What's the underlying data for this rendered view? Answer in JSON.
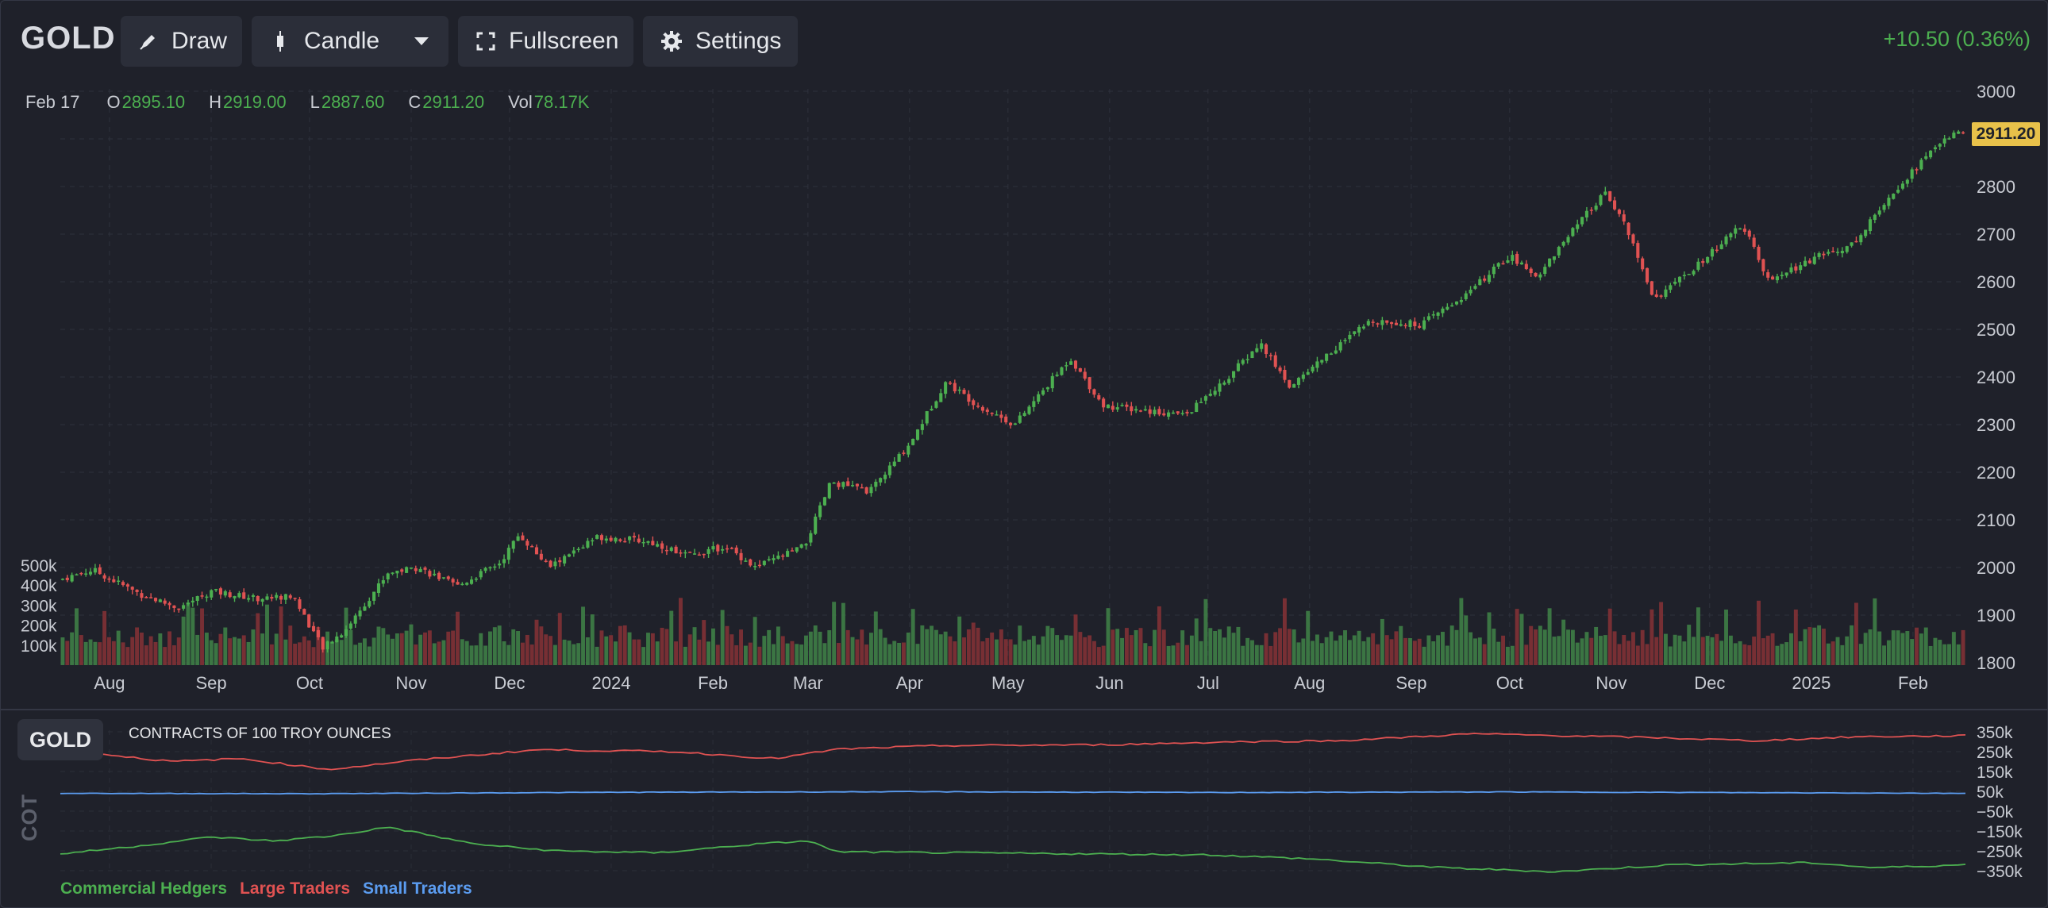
{
  "toolbar": {
    "symbol": "GOLD",
    "draw_label": "Draw",
    "chart_type_label": "Candle",
    "fullscreen_label": "Fullscreen",
    "settings_label": "Settings",
    "change_text": "+10.50 (0.36%)"
  },
  "ohlc": {
    "date": "Feb 17",
    "o_label": "O",
    "o_value": "2895.10",
    "h_label": "H",
    "h_value": "2919.00",
    "l_label": "L",
    "l_value": "2887.60",
    "c_label": "C",
    "c_value": "2911.20",
    "vol_label": "Vol",
    "vol_value": "78.17K"
  },
  "colors": {
    "up": "#4caf50",
    "down": "#e05252",
    "small": "#5b9cf0",
    "price_tag": "#e8c14a"
  },
  "chart_data": [
    {
      "type": "candlestick",
      "x_ticks": [
        "Aug",
        "Sep",
        "Oct",
        "Nov",
        "Dec",
        "2024",
        "Feb",
        "Mar",
        "Apr",
        "May",
        "Jun",
        "Jul",
        "Aug",
        "Sep",
        "Oct",
        "Nov",
        "Dec",
        "2025",
        "Feb"
      ],
      "y_ticks": [
        "3000",
        "2900",
        "2800",
        "2700",
        "2600",
        "2500",
        "2400",
        "2300",
        "2200",
        "2100",
        "2000",
        "1900",
        "1800"
      ],
      "ylim": [
        1800,
        3000
      ],
      "last_price": "2911.20",
      "close_path": [
        [
          "2023-07-17",
          1975
        ],
        [
          "2023-07-27",
          1995
        ],
        [
          "2023-08-10",
          1945
        ],
        [
          "2023-08-22",
          1915
        ],
        [
          "2023-09-01",
          1950
        ],
        [
          "2023-09-15",
          1935
        ],
        [
          "2023-09-26",
          1940
        ],
        [
          "2023-10-05",
          1830
        ],
        [
          "2023-10-12",
          1870
        ],
        [
          "2023-10-25",
          1990
        ],
        [
          "2023-11-03",
          2000
        ],
        [
          "2023-11-15",
          1960
        ],
        [
          "2023-11-28",
          2010
        ],
        [
          "2023-12-04",
          2070
        ],
        [
          "2023-12-13",
          2000
        ],
        [
          "2023-12-28",
          2065
        ],
        [
          "2024-01-12",
          2055
        ],
        [
          "2024-01-25",
          2025
        ],
        [
          "2024-02-05",
          2045
        ],
        [
          "2024-02-14",
          2000
        ],
        [
          "2024-02-29",
          2045
        ],
        [
          "2024-03-08",
          2180
        ],
        [
          "2024-03-20",
          2160
        ],
        [
          "2024-04-01",
          2260
        ],
        [
          "2024-04-12",
          2390
        ],
        [
          "2024-04-22",
          2340
        ],
        [
          "2024-05-03",
          2300
        ],
        [
          "2024-05-20",
          2440
        ],
        [
          "2024-05-30",
          2340
        ],
        [
          "2024-06-12",
          2330
        ],
        [
          "2024-06-24",
          2320
        ],
        [
          "2024-07-05",
          2385
        ],
        [
          "2024-07-17",
          2470
        ],
        [
          "2024-07-26",
          2380
        ],
        [
          "2024-08-05",
          2440
        ],
        [
          "2024-08-20",
          2520
        ],
        [
          "2024-09-04",
          2510
        ],
        [
          "2024-09-18",
          2575
        ],
        [
          "2024-10-01",
          2655
        ],
        [
          "2024-10-09",
          2610
        ],
        [
          "2024-10-23",
          2730
        ],
        [
          "2024-10-30",
          2785
        ],
        [
          "2024-11-04",
          2740
        ],
        [
          "2024-11-14",
          2565
        ],
        [
          "2024-11-25",
          2620
        ],
        [
          "2024-12-11",
          2720
        ],
        [
          "2024-12-19",
          2600
        ],
        [
          "2025-01-02",
          2650
        ],
        [
          "2025-01-14",
          2680
        ],
        [
          "2025-01-24",
          2775
        ],
        [
          "2025-02-04",
          2855
        ],
        [
          "2025-02-11",
          2905
        ],
        [
          "2025-02-17",
          2911.2
        ]
      ]
    },
    {
      "type": "bar",
      "title": "Volume",
      "y_ticks": [
        "500k",
        "400k",
        "300k",
        "200k",
        "100k"
      ],
      "ylim": [
        0,
        500000
      ]
    },
    {
      "type": "line",
      "title": "COT",
      "subtitle": "CONTRACTS OF 100 TROY OUNCES",
      "symbol": "GOLD",
      "y_ticks": [
        "350k",
        "250k",
        "150k",
        "50k",
        "−50k",
        "−150k",
        "−250k",
        "−350k"
      ],
      "ylim": [
        -400000,
        400000
      ],
      "series": [
        {
          "name": "Commercial Hedgers",
          "color": "#4caf50",
          "points": [
            [
              "2023-07-17",
              -265000
            ],
            [
              "2023-08-10",
              -225000
            ],
            [
              "2023-09-01",
              -180000
            ],
            [
              "2023-09-20",
              -200000
            ],
            [
              "2023-10-08",
              -175000
            ],
            [
              "2023-10-25",
              -130000
            ],
            [
              "2023-11-20",
              -215000
            ],
            [
              "2023-12-15",
              -250000
            ],
            [
              "2024-01-15",
              -260000
            ],
            [
              "2024-02-15",
              -215000
            ],
            [
              "2024-03-01",
              -200000
            ],
            [
              "2024-03-10",
              -255000
            ],
            [
              "2024-05-01",
              -262000
            ],
            [
              "2024-07-01",
              -270000
            ],
            [
              "2024-08-01",
              -290000
            ],
            [
              "2024-09-10",
              -335000
            ],
            [
              "2024-10-15",
              -355000
            ],
            [
              "2024-11-20",
              -320000
            ],
            [
              "2025-01-01",
              -310000
            ],
            [
              "2025-01-20",
              -335000
            ],
            [
              "2025-02-17",
              -320000
            ]
          ]
        },
        {
          "name": "Large Traders",
          "color": "#e05252",
          "points": [
            [
              "2023-07-17",
              260000
            ],
            [
              "2023-08-20",
              200000
            ],
            [
              "2023-09-10",
              215000
            ],
            [
              "2023-10-07",
              160000
            ],
            [
              "2023-11-01",
              205000
            ],
            [
              "2023-12-10",
              260000
            ],
            [
              "2024-01-20",
              250000
            ],
            [
              "2024-02-20",
              215000
            ],
            [
              "2024-03-10",
              262000
            ],
            [
              "2024-04-10",
              280000
            ],
            [
              "2024-06-01",
              285000
            ],
            [
              "2024-07-10",
              300000
            ],
            [
              "2024-08-10",
              305000
            ],
            [
              "2024-09-20",
              340000
            ],
            [
              "2024-11-15",
              320000
            ],
            [
              "2024-12-15",
              305000
            ],
            [
              "2025-01-15",
              325000
            ],
            [
              "2025-02-17",
              330000
            ]
          ]
        },
        {
          "name": "Small Traders",
          "color": "#5b9cf0",
          "points": [
            [
              "2023-07-17",
              40000
            ],
            [
              "2023-10-01",
              38000
            ],
            [
              "2024-01-01",
              45000
            ],
            [
              "2024-04-01",
              48000
            ],
            [
              "2024-07-01",
              44000
            ],
            [
              "2024-10-01",
              47000
            ],
            [
              "2025-02-17",
              40000
            ]
          ]
        }
      ]
    }
  ]
}
